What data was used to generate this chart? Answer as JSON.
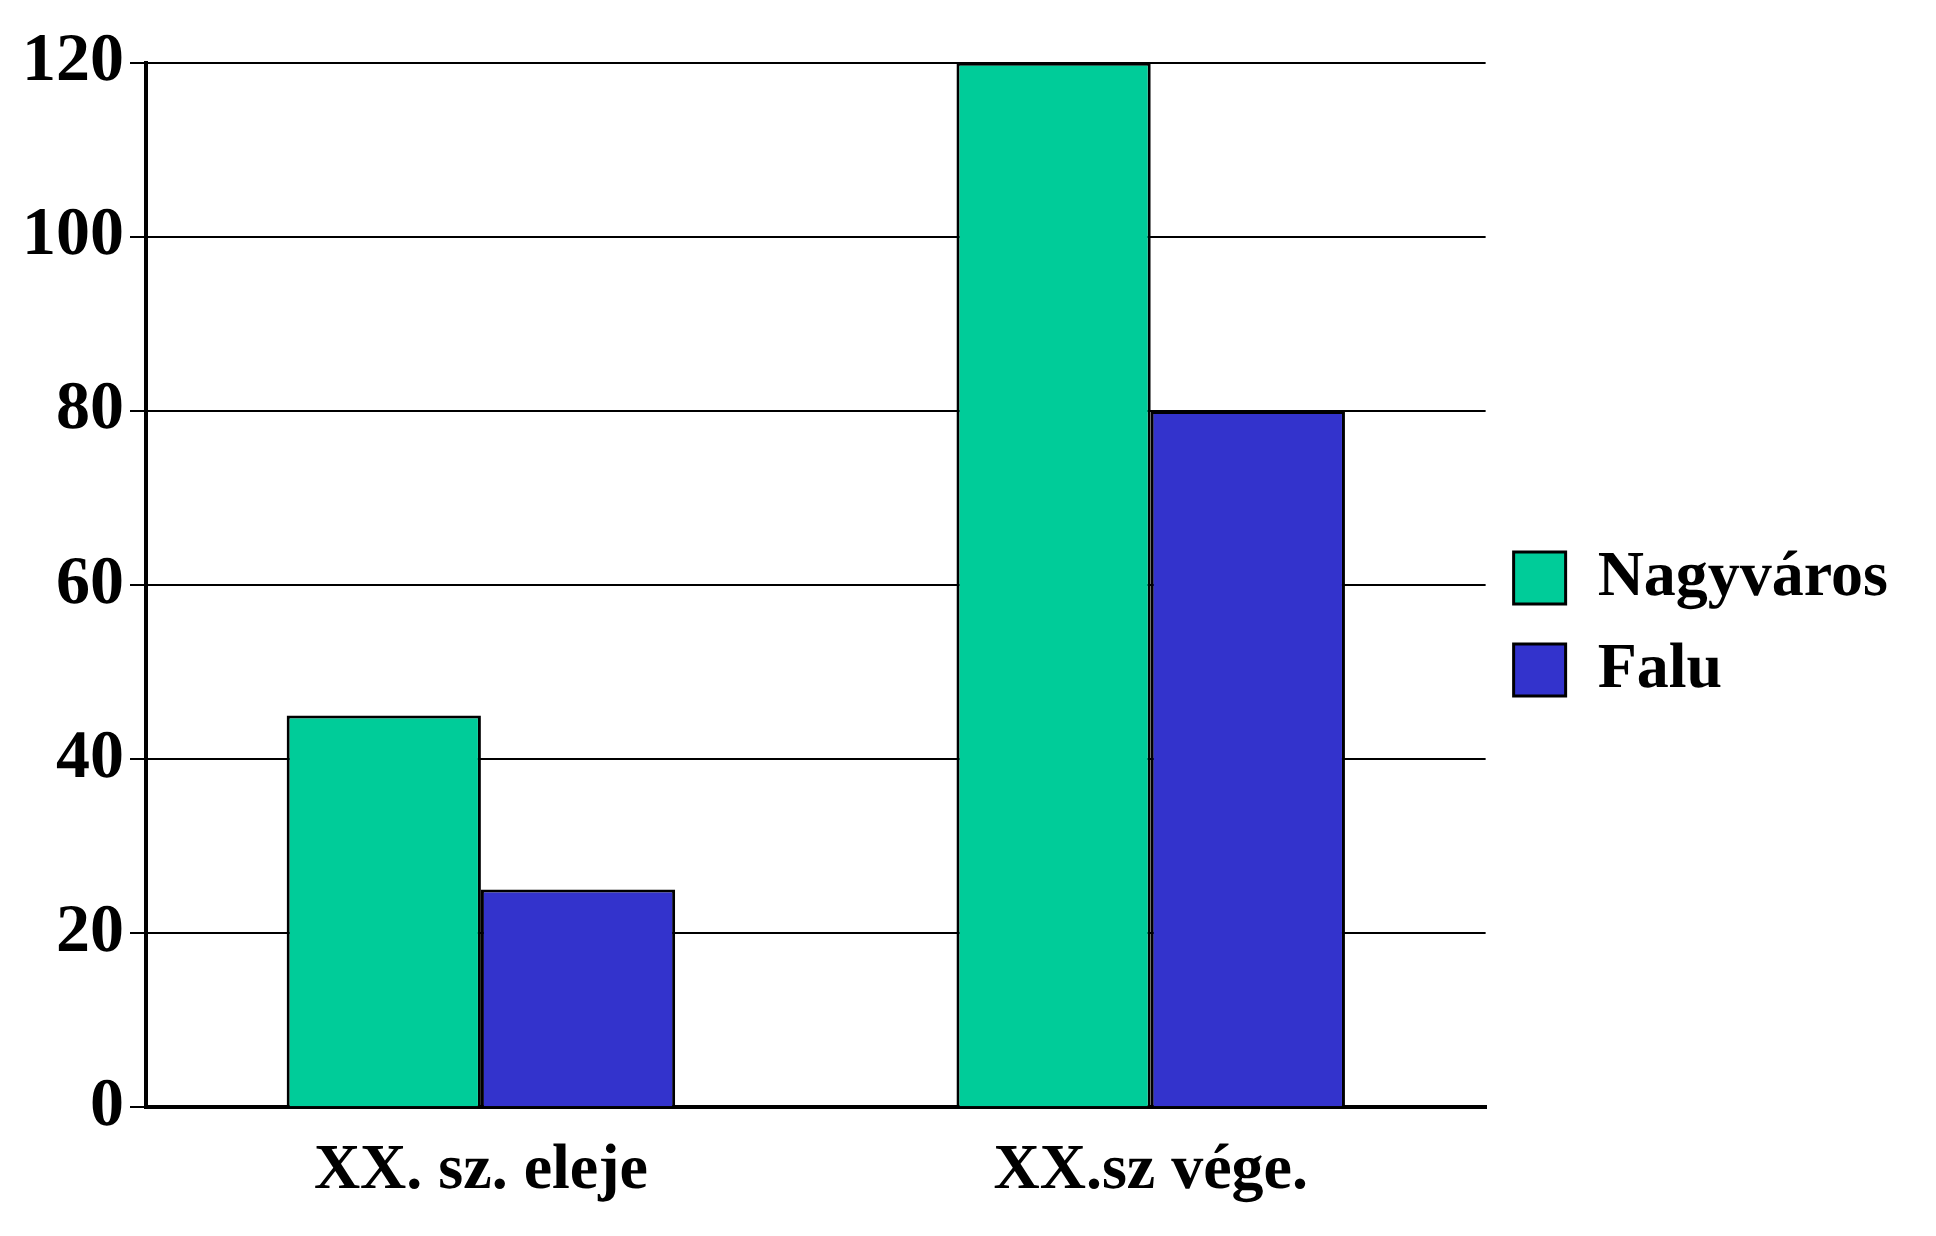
{
  "chart_data": {
    "type": "bar",
    "categories": [
      "XX. sz. eleje",
      "XX.sz vége."
    ],
    "series": [
      {
        "name": "Nagyváros",
        "color": "#00cc99",
        "values": [
          45,
          120
        ]
      },
      {
        "name": "Falu",
        "color": "#3333cc",
        "values": [
          25,
          80
        ]
      }
    ],
    "ylim": [
      0,
      120
    ],
    "yticks": [
      0,
      20,
      40,
      60,
      80,
      100,
      120
    ],
    "grid": "y",
    "legend": "right"
  }
}
